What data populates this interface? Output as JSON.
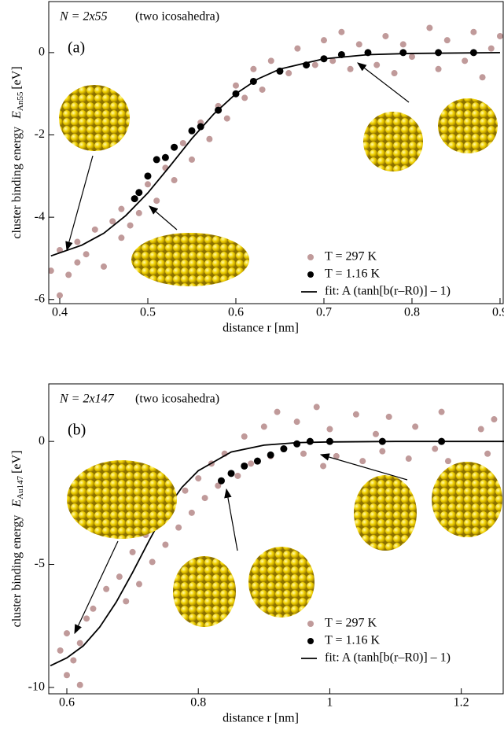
{
  "chart_data": [
    {
      "type": "scatter",
      "panel_label": "(a)",
      "system_label": "N = 2x55",
      "system_note": "(two icosahedra)",
      "xlabel": "distance r [nm]",
      "ylabel": "cluster binding energy",
      "ylabel_symbol": "E",
      "ylabel_sub": "An55",
      "ylabel_unit": "[eV]",
      "xlim": [
        0.3875,
        0.9045
      ],
      "ylim": [
        -6.1,
        1.24
      ],
      "xticks": [
        0.4,
        0.5,
        0.6,
        0.7,
        0.8,
        0.9
      ],
      "yticks": [
        -6,
        -4,
        -2,
        0
      ],
      "series": [
        {
          "name": "T = 297 K",
          "color": "#c09a9a",
          "marker": "dot",
          "x": [
            0.39,
            0.4,
            0.4,
            0.41,
            0.42,
            0.42,
            0.43,
            0.44,
            0.45,
            0.46,
            0.47,
            0.47,
            0.48,
            0.49,
            0.5,
            0.51,
            0.52,
            0.53,
            0.54,
            0.55,
            0.56,
            0.57,
            0.58,
            0.59,
            0.6,
            0.61,
            0.62,
            0.63,
            0.64,
            0.66,
            0.67,
            0.69,
            0.7,
            0.71,
            0.72,
            0.73,
            0.74,
            0.76,
            0.77,
            0.78,
            0.79,
            0.8,
            0.82,
            0.83,
            0.84,
            0.86,
            0.87,
            0.88,
            0.89,
            0.9
          ],
          "values": [
            -5.3,
            -4.8,
            -5.9,
            -5.4,
            -4.6,
            -5.1,
            -4.9,
            -4.3,
            -5.2,
            -4.1,
            -4.5,
            -3.8,
            -4.2,
            -3.9,
            -3.2,
            -3.6,
            -2.8,
            -3.1,
            -2.2,
            -2.6,
            -1.7,
            -2.1,
            -1.3,
            -1.6,
            -0.8,
            -1.1,
            -0.4,
            -0.9,
            -0.2,
            -0.5,
            0.1,
            -0.3,
            0.3,
            -0.2,
            0.5,
            -0.4,
            0.2,
            -0.3,
            0.4,
            -0.5,
            0.2,
            -0.1,
            0.6,
            -0.4,
            0.3,
            -0.2,
            0.5,
            -0.6,
            0.1,
            0.4
          ]
        },
        {
          "name": "T = 1.16 K",
          "color": "#000000",
          "marker": "dot",
          "x": [
            0.485,
            0.49,
            0.5,
            0.51,
            0.52,
            0.53,
            0.55,
            0.56,
            0.58,
            0.6,
            0.62,
            0.65,
            0.68,
            0.7,
            0.72,
            0.75,
            0.79,
            0.83,
            0.87
          ],
          "values": [
            -3.55,
            -3.4,
            -3.0,
            -2.6,
            -2.55,
            -2.3,
            -1.9,
            -1.8,
            -1.4,
            -1.0,
            -0.7,
            -0.45,
            -0.3,
            -0.15,
            -0.05,
            0,
            0,
            0,
            0
          ]
        },
        {
          "name": "fit: A (tanh[b(r–R0)] – 1)",
          "color": "#000000",
          "marker": "line",
          "x": [
            0.39,
            0.425,
            0.45,
            0.475,
            0.5,
            0.525,
            0.55,
            0.575,
            0.6,
            0.625,
            0.65,
            0.7,
            0.75,
            0.8,
            0.9
          ],
          "values": [
            -4.94,
            -4.68,
            -4.39,
            -3.96,
            -3.41,
            -2.76,
            -2.09,
            -1.49,
            -1.0,
            -0.64,
            -0.4,
            -0.15,
            -0.05,
            -0.02,
            0
          ]
        }
      ]
    },
    {
      "type": "scatter",
      "panel_label": "(b)",
      "system_label": "N = 2x147",
      "system_note": "(two icosahedra)",
      "xlabel": "distance r [nm]",
      "ylabel": "cluster binding energy",
      "ylabel_symbol": "E",
      "ylabel_sub": "Au147",
      "ylabel_unit": "[eV]",
      "xlim": [
        0.5725,
        1.265
      ],
      "ylim": [
        -10.26,
        2.34
      ],
      "xticks": [
        0.6,
        0.8,
        1,
        1.2
      ],
      "yticks": [
        -10,
        -5,
        0
      ],
      "series": [
        {
          "name": "T = 297 K",
          "color": "#c09a9a",
          "marker": "dot",
          "x": [
            0.59,
            0.6,
            0.6,
            0.61,
            0.62,
            0.62,
            0.63,
            0.64,
            0.66,
            0.68,
            0.69,
            0.7,
            0.71,
            0.72,
            0.73,
            0.74,
            0.75,
            0.76,
            0.77,
            0.78,
            0.79,
            0.8,
            0.81,
            0.82,
            0.83,
            0.84,
            0.86,
            0.87,
            0.88,
            0.9,
            0.91,
            0.92,
            0.93,
            0.95,
            0.96,
            0.98,
            0.99,
            1.0,
            1.01,
            1.04,
            1.05,
            1.07,
            1.08,
            1.09,
            1.12,
            1.13,
            1.16,
            1.17,
            1.18,
            1.23,
            1.24,
            1.25
          ],
          "values": [
            -8.5,
            -9.5,
            -7.8,
            -8.9,
            -8.2,
            -9.9,
            -7.2,
            -6.8,
            -6.0,
            -5.5,
            -6.5,
            -4.5,
            -5.8,
            -3.8,
            -4.9,
            -3.2,
            -4.2,
            -2.6,
            -3.5,
            -2.0,
            -2.9,
            -1.5,
            -2.3,
            -0.9,
            -1.8,
            -0.5,
            -1.4,
            0.2,
            -0.9,
            0.6,
            -0.6,
            1.2,
            -0.3,
            0.8,
            -0.5,
            1.4,
            -1.0,
            0.5,
            -0.6,
            1.1,
            -0.8,
            0.3,
            -0.4,
            1.0,
            -0.7,
            0.6,
            -0.3,
            1.2,
            -0.8,
            0.5,
            -0.5,
            0.9
          ]
        },
        {
          "name": "T = 1.16 K",
          "color": "#000000",
          "marker": "dot",
          "x": [
            0.835,
            0.85,
            0.87,
            0.89,
            0.91,
            0.93,
            0.95,
            0.97,
            1.0,
            1.08,
            1.17
          ],
          "values": [
            -1.6,
            -1.3,
            -1.0,
            -0.8,
            -0.55,
            -0.3,
            -0.1,
            0,
            0,
            0,
            0
          ]
        },
        {
          "name": "fit: A (tanh[b(r–R0)] – 1)",
          "color": "#000000",
          "marker": "line",
          "x": [
            0.575,
            0.6,
            0.625,
            0.65,
            0.675,
            0.7,
            0.725,
            0.75,
            0.775,
            0.8,
            0.85,
            0.9,
            0.95,
            1.0,
            1.1,
            1.265
          ],
          "values": [
            -9.12,
            -8.8,
            -8.31,
            -7.55,
            -6.54,
            -5.33,
            -4.04,
            -2.82,
            -1.87,
            -1.19,
            -0.43,
            -0.15,
            -0.05,
            -0.02,
            0,
            0
          ]
        }
      ]
    }
  ]
}
